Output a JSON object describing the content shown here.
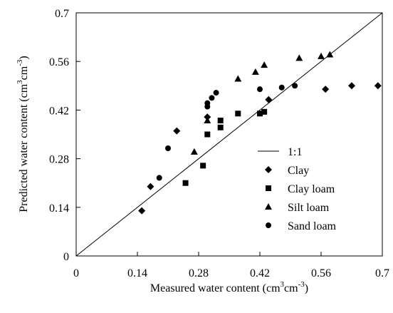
{
  "chart_data": {
    "type": "scatter",
    "xlabel": "Measured water content (cm³cm⁻³)",
    "ylabel": "Predicted water content (cm³cm⁻³)",
    "xlim": [
      0,
      0.7
    ],
    "ylim": [
      0,
      0.7
    ],
    "xticks": [
      "0",
      "0.14",
      "0.28",
      "0.42",
      "0.56",
      "0.7"
    ],
    "yticks": [
      "0",
      "0.14",
      "0.28",
      "0.42",
      "0.56",
      "0.7"
    ],
    "grid": false,
    "legend_position": "lower-right",
    "reference_line": {
      "label": "1:1",
      "from": [
        0,
        0
      ],
      "to": [
        0.7,
        0.7
      ]
    },
    "series": [
      {
        "name": "Clay",
        "marker": "diamond",
        "points": [
          [
            0.15,
            0.13
          ],
          [
            0.17,
            0.2
          ],
          [
            0.23,
            0.36
          ],
          [
            0.3,
            0.4
          ],
          [
            0.44,
            0.45
          ],
          [
            0.57,
            0.48
          ],
          [
            0.63,
            0.49
          ],
          [
            0.69,
            0.49
          ]
        ]
      },
      {
        "name": "Clay loam",
        "marker": "square",
        "points": [
          [
            0.25,
            0.21
          ],
          [
            0.29,
            0.26
          ],
          [
            0.3,
            0.35
          ],
          [
            0.33,
            0.37
          ],
          [
            0.33,
            0.39
          ],
          [
            0.37,
            0.41
          ],
          [
            0.42,
            0.41
          ],
          [
            0.43,
            0.415
          ]
        ]
      },
      {
        "name": "Silt loam",
        "marker": "triangle",
        "points": [
          [
            0.27,
            0.3
          ],
          [
            0.3,
            0.39
          ],
          [
            0.37,
            0.51
          ],
          [
            0.41,
            0.53
          ],
          [
            0.43,
            0.55
          ],
          [
            0.51,
            0.57
          ],
          [
            0.56,
            0.575
          ],
          [
            0.58,
            0.58
          ]
        ]
      },
      {
        "name": "Sand loam",
        "marker": "circle",
        "points": [
          [
            0.19,
            0.225
          ],
          [
            0.21,
            0.31
          ],
          [
            0.3,
            0.43
          ],
          [
            0.3,
            0.44
          ],
          [
            0.31,
            0.455
          ],
          [
            0.32,
            0.47
          ],
          [
            0.42,
            0.48
          ],
          [
            0.47,
            0.485
          ],
          [
            0.5,
            0.49
          ]
        ]
      }
    ]
  },
  "ylabel_parts": {
    "main": "Predicted water content (cm",
    "sup1": "3",
    "mid": "cm",
    "sup2": "-3",
    "end": ")"
  },
  "xlabel_parts": {
    "main": "Measured water content (cm",
    "sup1": "3",
    "mid": "cm",
    "sup2": "-3",
    "end": ")"
  }
}
